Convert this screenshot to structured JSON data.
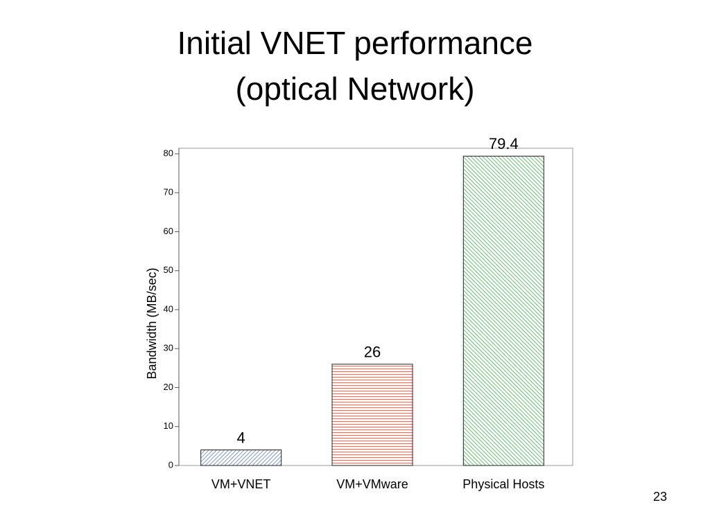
{
  "chart_data": {
    "type": "bar",
    "title": [
      "Initial VNET performance",
      "(optical Network)"
    ],
    "y_label": "Bandwidth (MB/sec)",
    "categories": [
      "VM+VNET",
      "VM+VMware",
      "Physical Hosts"
    ],
    "values": [
      4,
      26,
      79.4
    ],
    "colors": [
      "#4a6fa5",
      "#c0392b",
      "#2e9e3e"
    ],
    "ylim": [
      0,
      80
    ],
    "yticks": [
      0,
      10,
      20,
      30,
      40,
      50,
      60,
      70,
      80
    ]
  },
  "page_number": "23"
}
